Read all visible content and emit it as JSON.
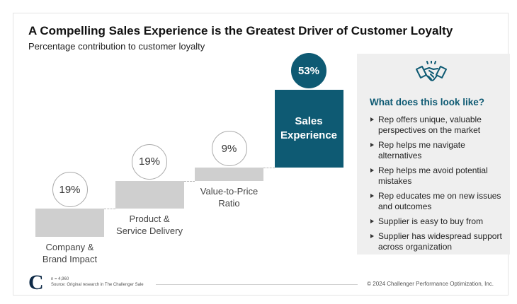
{
  "chart_data": {
    "type": "waterfall",
    "title": "A Compelling Sales Experience is the Greatest Driver of Customer Loyalty",
    "subtitle": "Percentage contribution to customer loyalty",
    "categories": [
      "Company & Brand Impact",
      "Product & Service Delivery",
      "Value-to-Price Ratio",
      "Sales Experience"
    ],
    "values": [
      19,
      19,
      9,
      53
    ],
    "value_labels": [
      "19%",
      "19%",
      "9%",
      "53%"
    ],
    "color": "#cfcfcf",
    "highlight_color": "#0e5a73",
    "highlight_index": 3
  },
  "panel": {
    "title": "What does this look like?",
    "items": [
      "Rep offers unique, valuable perspectives on the market",
      "Rep helps me navigate alternatives",
      "Rep helps me avoid potential mistakes",
      "Rep educates me on new issues and outcomes",
      "Supplier is easy to buy from",
      "Supplier has widespread support across organization"
    ]
  },
  "footer": {
    "sample": "n = 4,960",
    "source": "Source: Original research in The Challenger Sale",
    "copyright": "© 2024 Challenger Performance Optimization, Inc."
  }
}
